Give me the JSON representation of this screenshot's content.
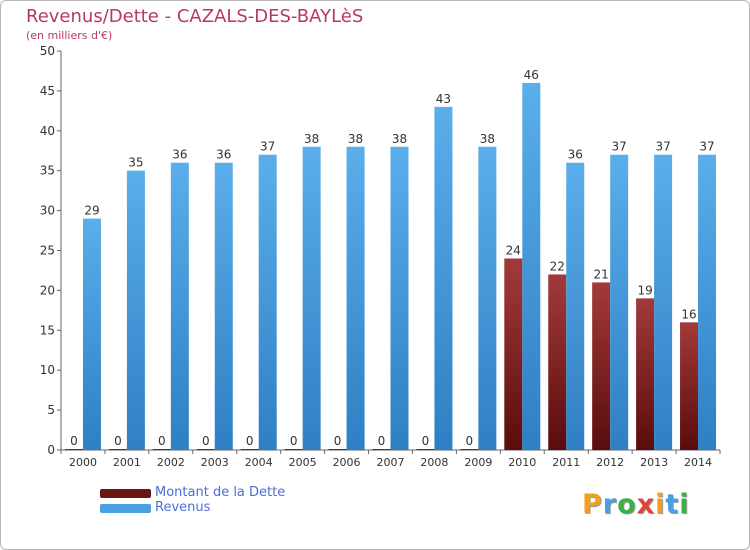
{
  "colors": {
    "debt": "#7a1f1f",
    "debt_light": "#a33a3a",
    "revenue": "#4a9fe3",
    "revenue_light": "#6cb6ef",
    "title": "#b8376a",
    "legend_text": "#4a6fd8",
    "axis": "#555555",
    "grid": "#dddddd"
  },
  "legend": [
    {
      "label": "Montant de la Dette",
      "color": "#6b1414"
    },
    {
      "label": "Revenus",
      "color": "#4a9fe3"
    }
  ],
  "logo": {
    "letters": [
      "P",
      "r",
      "o",
      "x",
      "i",
      "t",
      "i"
    ],
    "colors": [
      "#f0a020",
      "#4a9fe3",
      "#3cae4a",
      "#e0453a",
      "#f0a020",
      "#4a9fe3",
      "#3cae4a"
    ]
  },
  "chart_data": {
    "type": "bar",
    "title": "Revenus/Dette - CAZALS-DES-BAYLèS",
    "subtitle": "(en milliers d'€)",
    "categories": [
      "2000",
      "2001",
      "2002",
      "2003",
      "2004",
      "2005",
      "2006",
      "2007",
      "2008",
      "2009",
      "2010",
      "2011",
      "2012",
      "2013",
      "2014"
    ],
    "series": [
      {
        "name": "Montant de la Dette",
        "values": [
          0,
          0,
          0,
          0,
          0,
          0,
          0,
          0,
          0,
          0,
          24,
          22,
          21,
          19,
          16
        ]
      },
      {
        "name": "Revenus",
        "values": [
          29,
          35,
          36,
          36,
          37,
          38,
          38,
          38,
          43,
          38,
          46,
          36,
          37,
          37,
          37
        ]
      }
    ],
    "ylim": [
      0,
      50
    ],
    "yticks": [
      0,
      5,
      10,
      15,
      20,
      25,
      30,
      35,
      40,
      45,
      50
    ],
    "grid": false,
    "legend_position": "bottom-left"
  }
}
